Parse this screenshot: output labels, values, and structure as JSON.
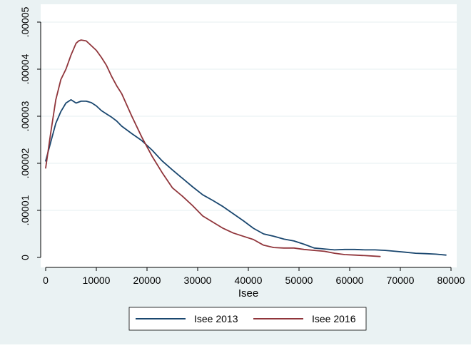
{
  "chart_data": {
    "type": "line",
    "title": "",
    "xlabel": "Isee",
    "ylabel": "",
    "xlim": [
      0,
      80000
    ],
    "ylim": [
      0,
      5e-05
    ],
    "xticks": [
      0,
      10000,
      20000,
      30000,
      40000,
      50000,
      60000,
      70000,
      80000
    ],
    "xtick_labels": [
      "0",
      "10000",
      "20000",
      "30000",
      "40000",
      "50000",
      "60000",
      "70000",
      "80000"
    ],
    "yticks": [
      0,
      1e-05,
      2e-05,
      3e-05,
      4e-05,
      5e-05
    ],
    "ytick_labels": [
      "0",
      ".00001",
      ".00002",
      ".00003",
      ".00004",
      ".00005"
    ],
    "grid": true,
    "legend_position": "bottom",
    "colors": {
      "background": "#eaf2f3",
      "plot_area": "#ffffff",
      "grid": "#eaf2f3"
    },
    "series": [
      {
        "name": "Isee 2013",
        "color": "#1a476f",
        "x": [
          0,
          1000,
          2000,
          3000,
          4000,
          5000,
          6000,
          7000,
          8000,
          9000,
          10000,
          11000,
          12000,
          13000,
          14000,
          15000,
          17000,
          19000,
          21000,
          23000,
          25000,
          27000,
          29000,
          31000,
          33000,
          35000,
          37000,
          39000,
          41000,
          43000,
          45000,
          47000,
          49000,
          51000,
          53000,
          55000,
          57000,
          59000,
          61000,
          63000,
          65000,
          67000,
          69000,
          71000,
          73000,
          75000,
          77000,
          79000
        ],
        "y": [
          2.05e-05,
          2.45e-05,
          2.85e-05,
          3.1e-05,
          3.28e-05,
          3.35e-05,
          3.28e-05,
          3.32e-05,
          3.32e-05,
          3.29e-05,
          3.22e-05,
          3.12e-05,
          3.05e-05,
          2.98e-05,
          2.9e-05,
          2.79e-05,
          2.63e-05,
          2.48e-05,
          2.28e-05,
          2.05e-05,
          1.86e-05,
          1.68e-05,
          1.5e-05,
          1.33e-05,
          1.21e-05,
          1.08e-05,
          9.3e-06,
          7.8e-06,
          6.2e-06,
          5e-06,
          4.5e-06,
          3.9e-06,
          3.5e-06,
          2.8e-06,
          2e-06,
          1.8e-06,
          1.6e-06,
          1.7e-06,
          1.7e-06,
          1.6e-06,
          1.6e-06,
          1.5e-06,
          1.3e-06,
          1.1e-06,
          9e-07,
          8e-07,
          7e-07,
          5e-07
        ]
      },
      {
        "name": "Isee 2016",
        "color": "#90353b",
        "x": [
          0,
          1000,
          2000,
          3000,
          4000,
          5000,
          6000,
          6500,
          7000,
          8000,
          9000,
          10000,
          11000,
          12000,
          13000,
          14000,
          15000,
          17000,
          19000,
          21000,
          23000,
          25000,
          27000,
          29000,
          31000,
          33000,
          35000,
          37000,
          39000,
          41000,
          43000,
          45000,
          47000,
          49000,
          51000,
          53000,
          55000,
          57000,
          59000,
          61000,
          63000,
          66000
        ],
        "y": [
          1.9e-05,
          2.65e-05,
          3.35e-05,
          3.78e-05,
          4e-05,
          4.3e-05,
          4.55e-05,
          4.6e-05,
          4.62e-05,
          4.6e-05,
          4.5e-05,
          4.4e-05,
          4.25e-05,
          4.08e-05,
          3.85e-05,
          3.65e-05,
          3.48e-05,
          3e-05,
          2.55e-05,
          2.15e-05,
          1.8e-05,
          1.48e-05,
          1.3e-05,
          1.1e-05,
          8.8e-06,
          7.5e-06,
          6.2e-06,
          5.2e-06,
          4.5e-06,
          3.8e-06,
          2.6e-06,
          2.1e-06,
          2e-06,
          2e-06,
          1.7e-06,
          1.5e-06,
          1.3e-06,
          9e-07,
          6e-07,
          5e-07,
          4e-07,
          2e-07
        ]
      }
    ]
  }
}
